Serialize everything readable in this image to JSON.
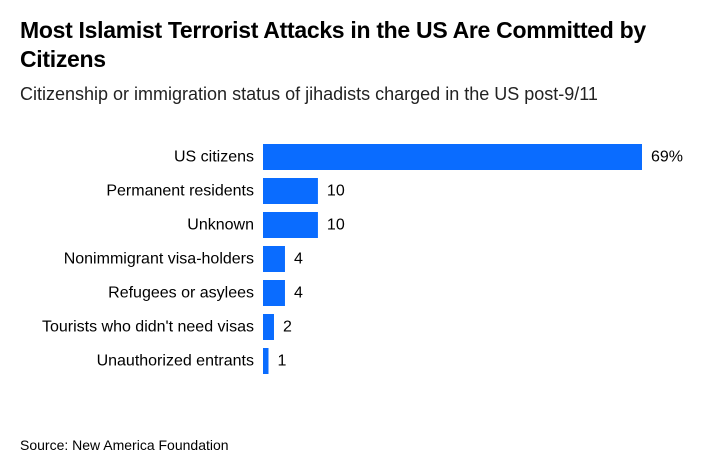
{
  "chart_data": {
    "type": "bar",
    "orientation": "horizontal",
    "title": "Most Islamist Terrorist Attacks in the US Are Committed by Citizens",
    "subtitle": "Citizenship or immigration status of jihadists charged in the US post-9/11",
    "categories": [
      "US citizens",
      "Permanent residents",
      "Unknown",
      "Nonimmigrant visa-holders",
      "Refugees or asylees",
      "Tourists who didn't need visas",
      "Unauthorized entrants"
    ],
    "values": [
      69,
      10,
      10,
      4,
      4,
      2,
      1
    ],
    "value_labels": [
      "69%",
      "10",
      "10",
      "4",
      "4",
      "2",
      "1"
    ],
    "unit": "%",
    "xlim": [
      0,
      69
    ],
    "grid": false,
    "legend": "none",
    "bar_color": "#0a6cff",
    "source": "Source: New America Foundation"
  }
}
